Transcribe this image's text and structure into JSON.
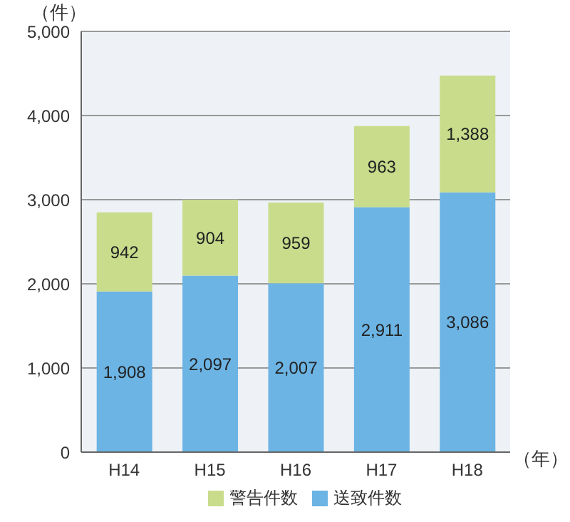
{
  "chart_data": {
    "type": "bar",
    "stacked": true,
    "ylabel": "（件）",
    "xlabel": "（年）",
    "categories": [
      "H14",
      "H15",
      "H16",
      "H17",
      "H18"
    ],
    "series": [
      {
        "name": "送致件数",
        "color": "#6cb4e4",
        "values": [
          1908,
          2097,
          2007,
          2911,
          3086
        ],
        "value_labels": [
          "1,908",
          "2,097",
          "2,007",
          "2,911",
          "3,086"
        ]
      },
      {
        "name": "警告件数",
        "color": "#c8dc8c",
        "values": [
          942,
          904,
          959,
          963,
          1388
        ],
        "value_labels": [
          "942",
          "904",
          "959",
          "963",
          "1,388"
        ]
      }
    ],
    "ylim": [
      0,
      5000
    ],
    "yticks": [
      {
        "value": 0,
        "label": "0"
      },
      {
        "value": 1000,
        "label": "1,000"
      },
      {
        "value": 2000,
        "label": "2,000"
      },
      {
        "value": 3000,
        "label": "3,000"
      },
      {
        "value": 4000,
        "label": "4,000"
      },
      {
        "value": 5000,
        "label": "5,000"
      }
    ],
    "grid": "y",
    "legend": "bottom"
  }
}
